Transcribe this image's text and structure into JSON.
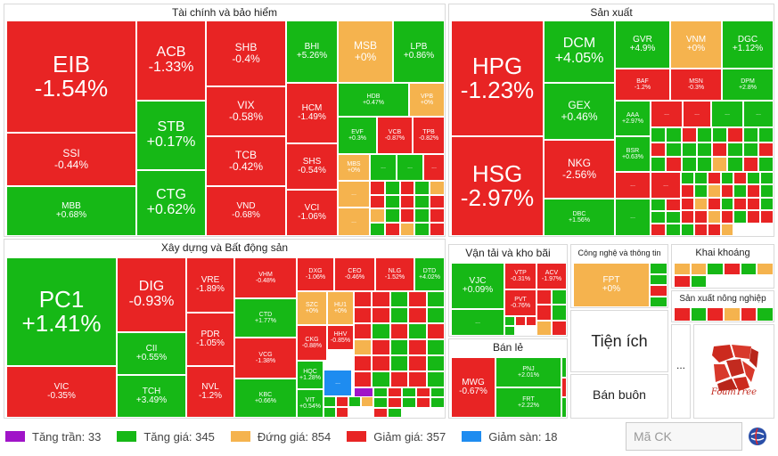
{
  "sectors": {
    "finance": {
      "title": "Tài chính và bảo hiểm",
      "tiles": [
        {
          "sym": "EIB",
          "pct": "-1.54%",
          "c": "r"
        },
        {
          "sym": "SSI",
          "pct": "-0.44%",
          "c": "r"
        },
        {
          "sym": "MBB",
          "pct": "+0.68%",
          "c": "g"
        },
        {
          "sym": "ACB",
          "pct": "-1.33%",
          "c": "r"
        },
        {
          "sym": "STB",
          "pct": "+0.17%",
          "c": "g"
        },
        {
          "sym": "CTG",
          "pct": "+0.62%",
          "c": "g"
        },
        {
          "sym": "SHB",
          "pct": "-0.4%",
          "c": "r"
        },
        {
          "sym": "VIX",
          "pct": "-0.58%",
          "c": "r"
        },
        {
          "sym": "TCB",
          "pct": "-0.42%",
          "c": "r"
        },
        {
          "sym": "VND",
          "pct": "-0.68%",
          "c": "r"
        },
        {
          "sym": "BHI",
          "pct": "+5.26%",
          "c": "g"
        },
        {
          "sym": "MSB",
          "pct": "+0%",
          "c": "y"
        },
        {
          "sym": "LPB",
          "pct": "+0.86%",
          "c": "g"
        },
        {
          "sym": "HCM",
          "pct": "-1.49%",
          "c": "r"
        },
        {
          "sym": "HDB",
          "pct": "+0.47%",
          "c": "g"
        },
        {
          "sym": "VPB",
          "pct": "+0%",
          "c": "y"
        },
        {
          "sym": "EVF",
          "pct": "+0.3%",
          "c": "g"
        },
        {
          "sym": "VCB",
          "pct": "-0.87%",
          "c": "r"
        },
        {
          "sym": "TPB",
          "pct": "-0.82%",
          "c": "r"
        },
        {
          "sym": "SHS",
          "pct": "-0.54%",
          "c": "r"
        },
        {
          "sym": "MBS",
          "pct": "+0%",
          "c": "y"
        },
        {
          "sym": "VCI",
          "pct": "-1.06%",
          "c": "r"
        }
      ],
      "more": "..."
    },
    "construction": {
      "title": "Xây dựng và Bất động sản",
      "tiles": [
        {
          "sym": "PC1",
          "pct": "+1.41%",
          "c": "g"
        },
        {
          "sym": "VIC",
          "pct": "-0.35%",
          "c": "r"
        },
        {
          "sym": "DIG",
          "pct": "-0.93%",
          "c": "r"
        },
        {
          "sym": "CII",
          "pct": "+0.55%",
          "c": "g"
        },
        {
          "sym": "TCH",
          "pct": "+3.49%",
          "c": "g"
        },
        {
          "sym": "VRE",
          "pct": "-1.89%",
          "c": "r"
        },
        {
          "sym": "PDR",
          "pct": "-1.05%",
          "c": "r"
        },
        {
          "sym": "NVL",
          "pct": "-1.2%",
          "c": "r"
        },
        {
          "sym": "VHM",
          "pct": "-0.48%",
          "c": "r"
        },
        {
          "sym": "CTD",
          "pct": "+1.77%",
          "c": "g"
        },
        {
          "sym": "VCG",
          "pct": "-1.38%",
          "c": "r"
        },
        {
          "sym": "KBC",
          "pct": "+0.66%",
          "c": "g"
        },
        {
          "sym": "DXG",
          "pct": "-1.06%",
          "c": "r"
        },
        {
          "sym": "CEO",
          "pct": "-0.46%",
          "c": "r"
        },
        {
          "sym": "NLG",
          "pct": "-1.52%",
          "c": "r"
        },
        {
          "sym": "DTD",
          "pct": "+4.02%",
          "c": "g"
        },
        {
          "sym": "SZC",
          "pct": "+0%",
          "c": "y"
        },
        {
          "sym": "HU1",
          "pct": "+0%",
          "c": "y"
        },
        {
          "sym": "HHV",
          "pct": "-0.85%",
          "c": "r"
        },
        {
          "sym": "CKG",
          "pct": "-0.88%",
          "c": "r"
        },
        {
          "sym": "HQC",
          "pct": "+1.28%",
          "c": "g"
        },
        {
          "sym": "VIT",
          "pct": "+0.54%",
          "c": "g"
        }
      ],
      "more": "..."
    },
    "production": {
      "title": "Sản xuất",
      "tiles": [
        {
          "sym": "HPG",
          "pct": "-1.23%",
          "c": "r"
        },
        {
          "sym": "HSG",
          "pct": "-2.97%",
          "c": "r"
        },
        {
          "sym": "DCM",
          "pct": "+4.05%",
          "c": "g"
        },
        {
          "sym": "GEX",
          "pct": "+0.46%",
          "c": "g"
        },
        {
          "sym": "NKG",
          "pct": "-2.56%",
          "c": "r"
        },
        {
          "sym": "DBC",
          "pct": "+1.56%",
          "c": "g"
        },
        {
          "sym": "GVR",
          "pct": "+4.9%",
          "c": "g"
        },
        {
          "sym": "VNM",
          "pct": "+0%",
          "c": "y"
        },
        {
          "sym": "DGC",
          "pct": "+1.12%",
          "c": "g"
        },
        {
          "sym": "BAF",
          "pct": "-1.2%",
          "c": "r"
        },
        {
          "sym": "MSN",
          "pct": "-0.3%",
          "c": "r"
        },
        {
          "sym": "DPM",
          "pct": "+2.8%",
          "c": "g"
        },
        {
          "sym": "AAA",
          "pct": "+2.97%",
          "c": "g"
        },
        {
          "sym": "BSR",
          "pct": "+0.63%",
          "c": "g"
        }
      ],
      "more": "..."
    },
    "transport": {
      "title": "Vận tải và kho bãi",
      "tiles": [
        {
          "sym": "VJC",
          "pct": "+0.09%",
          "c": "g"
        },
        {
          "sym": "VTP",
          "pct": "-0.31%",
          "c": "r"
        },
        {
          "sym": "ACV",
          "pct": "-1.97%",
          "c": "r"
        },
        {
          "sym": "PVT",
          "pct": "-0.76%",
          "c": "r"
        }
      ],
      "more": "..."
    },
    "retail": {
      "title": "Bán lẻ",
      "tiles": [
        {
          "sym": "MWG",
          "pct": "-0.67%",
          "c": "r"
        },
        {
          "sym": "PNJ",
          "pct": "+2.01%",
          "c": "g"
        },
        {
          "sym": "FRT",
          "pct": "+2.22%",
          "c": "g"
        }
      ]
    },
    "tech": {
      "title": "Công nghệ và thông tin",
      "tiles": [
        {
          "sym": "FPT",
          "pct": "+0%",
          "c": "y"
        }
      ]
    },
    "mining": {
      "title": "Khai khoáng"
    },
    "agri": {
      "title": "Sản xuất nông nghiệp"
    },
    "utilities": {
      "title": "Tiện ích"
    },
    "wholesale": {
      "title": "Bán buôn"
    },
    "others": "...",
    "foamtree_label": "FoamTree"
  },
  "legend": [
    {
      "label": "Tăng trần: 33",
      "color": "#a014c8"
    },
    {
      "label": "Tăng giá: 345",
      "color": "#16b816"
    },
    {
      "label": "Đứng giá: 854",
      "color": "#f5b34e"
    },
    {
      "label": "Giảm giá: 357",
      "color": "#e82424"
    },
    {
      "label": "Giảm sàn: 18",
      "color": "#1e8cf0"
    }
  ],
  "search": {
    "placeholder": "Mã CK"
  },
  "colors": {
    "up": "#16b816",
    "down": "#e82424",
    "flat": "#f5b34e",
    "ceiling": "#a014c8",
    "floor": "#1e8cf0"
  }
}
